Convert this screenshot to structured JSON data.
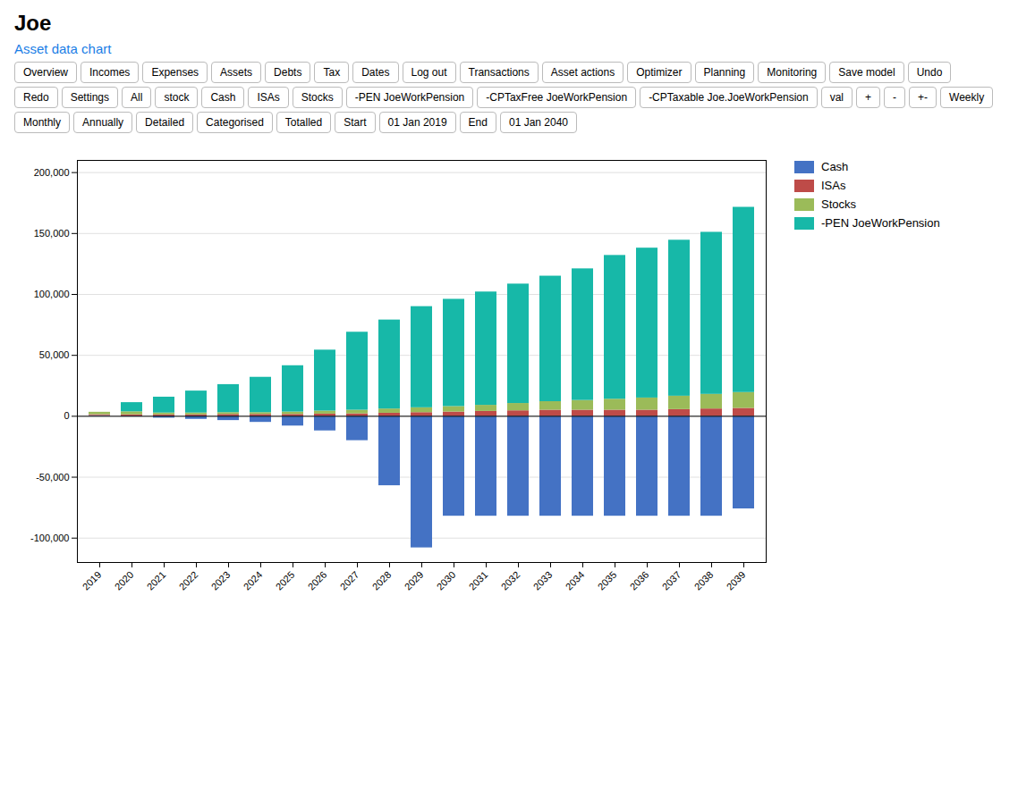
{
  "chart_data": {
    "type": "bar",
    "title": "Joe",
    "subtitle": "Asset data chart",
    "annotations": [
      "Overview",
      "Incomes",
      "Expenses",
      "Assets",
      "Debts",
      "Tax",
      "Dates",
      "Log out",
      "Transactions",
      "Asset actions",
      "Optimizer",
      "Planning",
      "Monitoring",
      "Save model",
      "Undo",
      "Redo",
      "Settings",
      "All",
      "stock",
      "Cash",
      "ISAs",
      "Stocks",
      "-PEN JoeWorkPension",
      "-CPTaxFree JoeWorkPension",
      "-CPTaxable Joe.JoeWorkPension",
      "val",
      "+",
      "-",
      "+-",
      "Weekly",
      "Monthly",
      "Annually",
      "Detailed",
      "Categorised",
      "Totalled",
      "Start",
      "01 Jan 2019",
      "End",
      "01 Jan 2040"
    ],
    "categories": [
      "2019",
      "2020",
      "2021",
      "2022",
      "2023",
      "2024",
      "2025",
      "2026",
      "2027",
      "2028",
      "2029",
      "2030",
      "2031",
      "2032",
      "2033",
      "2034",
      "2035",
      "2036",
      "2037",
      "2038",
      "2039"
    ],
    "series": [
      {
        "name": "Cash",
        "color": "#4472C4",
        "values": [
          500,
          -500,
          -1500,
          -2500,
          -3500,
          -5000,
          -8000,
          -12000,
          -20000,
          -57000,
          -108000,
          -82000,
          -82000,
          -82000,
          -82000,
          -82000,
          -82000,
          -82000,
          -82000,
          -82000,
          -76000
        ]
      },
      {
        "name": "ISAs",
        "color": "#BE4B48",
        "values": [
          800,
          1200,
          1200,
          1200,
          1500,
          1500,
          1500,
          1800,
          2000,
          2500,
          3000,
          3500,
          4000,
          4500,
          5000,
          5000,
          5000,
          5000,
          5500,
          6000,
          6500
        ]
      },
      {
        "name": "Stocks",
        "color": "#9BBB59",
        "values": [
          2000,
          2500,
          1500,
          1500,
          1500,
          1500,
          2000,
          2500,
          3000,
          3500,
          4000,
          4500,
          5000,
          6000,
          7000,
          8000,
          9000,
          10000,
          11000,
          12000,
          13000
        ]
      },
      {
        "name": "-PEN JoeWorkPension",
        "color": "#17B8A8",
        "values": [
          0,
          7500,
          13000,
          18000,
          23000,
          29000,
          38000,
          50000,
          64000,
          73000,
          83000,
          88000,
          93000,
          98000,
          103000,
          108000,
          118000,
          123000,
          128000,
          133000,
          152000
        ]
      }
    ],
    "stacked": true,
    "ylim": [
      -120000,
      210000
    ],
    "yticks": [
      {
        "value": -100000,
        "label": "-100,000"
      },
      {
        "value": -50000,
        "label": "-50,000"
      },
      0,
      {
        "value": 50000,
        "label": "50,000"
      },
      {
        "value": 100000,
        "label": "100,000"
      },
      {
        "value": 150000,
        "label": "150,000"
      },
      {
        "value": 200000,
        "label": "200,000"
      }
    ],
    "grid": true,
    "legend": "right"
  }
}
